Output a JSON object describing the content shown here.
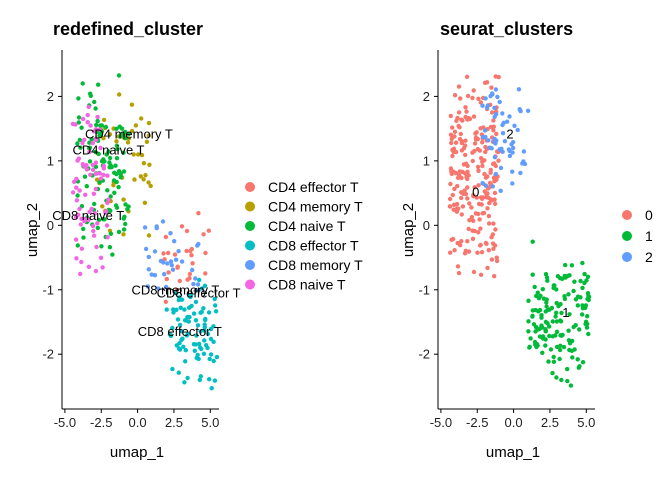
{
  "chart_data": [
    {
      "type": "scatter",
      "title": "redefined_cluster",
      "xlabel": "umap_1",
      "ylabel": "umap_2",
      "xlim": [
        -5.2,
        5.6
      ],
      "ylim": [
        -2.85,
        2.72
      ],
      "xticks": [
        "-5.0",
        "-2.5",
        "0.0",
        "2.5",
        "5.0"
      ],
      "xtick_values": [
        -5,
        -2.5,
        0,
        2.5,
        5
      ],
      "yticks": [
        "-2",
        "-1",
        "0",
        "1",
        "2"
      ],
      "ytick_values": [
        -2,
        -1,
        0,
        1,
        2
      ],
      "legend_position": "right",
      "series": [
        {
          "name": "CD4 effector T",
          "color": "#F8766D",
          "n": 28,
          "x": [
            1.5,
            5.0
          ],
          "y": [
            -1.4,
            0.3
          ]
        },
        {
          "name": "CD4 memory T",
          "color": "#B79F00",
          "n": 45,
          "x": [
            -2.8,
            1.0
          ],
          "y": [
            -0.4,
            2.2
          ]
        },
        {
          "name": "CD4 naive T",
          "color": "#00BA38",
          "n": 120,
          "x": [
            -4.2,
            -0.6
          ],
          "y": [
            -0.6,
            2.6
          ]
        },
        {
          "name": "CD8 effector T",
          "color": "#00BFC4",
          "n": 90,
          "x": [
            2.0,
            5.5
          ],
          "y": [
            -2.6,
            -0.7
          ]
        },
        {
          "name": "CD8 memory T",
          "color": "#619CFF",
          "n": 32,
          "x": [
            0.5,
            4.2
          ],
          "y": [
            -1.3,
            0.2
          ]
        },
        {
          "name": "CD8 naive T",
          "color": "#F564E3",
          "n": 75,
          "x": [
            -4.5,
            -2.0
          ],
          "y": [
            -1.0,
            2.2
          ]
        }
      ],
      "cluster_labels": [
        {
          "text": "CD4 memory T",
          "x": -0.6,
          "y": 1.35
        },
        {
          "text": "CD4 naive T",
          "x": -2.0,
          "y": 1.1
        },
        {
          "text": "CD8 naive T",
          "x": -3.4,
          "y": 0.08
        },
        {
          "text": "CD8 memory T",
          "x": 2.6,
          "y": -1.07
        },
        {
          "text": "CD8 effector T",
          "x": 4.2,
          "y": -1.12
        },
        {
          "text": "CD8 effector T",
          "x": 2.9,
          "y": -1.72
        }
      ]
    },
    {
      "type": "scatter",
      "title": "seurat_clusters",
      "xlabel": "umap_1",
      "ylabel": "umap_2",
      "xlim": [
        -5.2,
        5.6
      ],
      "ylim": [
        -2.85,
        2.72
      ],
      "xticks": [
        "-5.0",
        "-2.5",
        "0.0",
        "2.5",
        "5.0"
      ],
      "xtick_values": [
        -5,
        -2.5,
        0,
        2.5,
        5
      ],
      "yticks": [
        "-2",
        "-1",
        "0",
        "1",
        "2"
      ],
      "ytick_values": [
        -2,
        -1,
        0,
        1,
        2
      ],
      "legend_position": "right",
      "series": [
        {
          "name": "0",
          "color": "#F8766D",
          "n": 230,
          "x": [
            -4.4,
            -1.0
          ],
          "y": [
            -1.1,
            2.6
          ]
        },
        {
          "name": "1",
          "color": "#00BA38",
          "n": 150,
          "x": [
            1.0,
            5.2
          ],
          "y": [
            -2.6,
            -0.2
          ]
        },
        {
          "name": "2",
          "color": "#619CFF",
          "n": 60,
          "x": [
            -2.2,
            1.0
          ],
          "y": [
            0.4,
            2.4
          ]
        }
      ],
      "cluster_labels": [
        {
          "text": "0",
          "x": -2.6,
          "y": 0.45
        },
        {
          "text": "1",
          "x": 3.6,
          "y": -1.42
        },
        {
          "text": "2",
          "x": -0.25,
          "y": 1.35
        }
      ]
    }
  ]
}
